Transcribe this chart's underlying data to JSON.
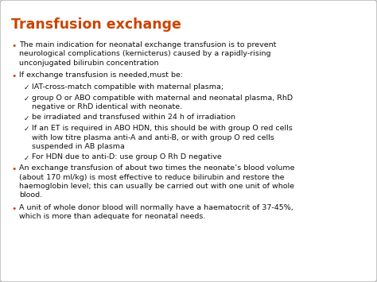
{
  "title": "Transfusion exchange",
  "title_color": "#CC4400",
  "bg_color": "#FFFFFF",
  "border_color": "#BBBBBB",
  "text_color": "#111111",
  "bullet_color": "#CC4400",
  "body_fontsize": 6.8,
  "title_fontsize": 12.5,
  "figsize": [
    4.74,
    3.55
  ],
  "dpi": 100,
  "items": [
    {
      "type": "bullet",
      "lines": [
        "The main indication for neonatal exchange transfusion is to prevent",
        "neurological complications (kernicterus) caused by a rapidly-rising",
        "unconjugated bilirubin concentration"
      ]
    },
    {
      "type": "bullet",
      "lines": [
        "If exchange transfusion is needed,must be:"
      ]
    },
    {
      "type": "check",
      "lines": [
        "IAT-cross-match compatible with maternal plasma;"
      ]
    },
    {
      "type": "check",
      "lines": [
        "group O or ABO compatible with maternal and neonatal plasma, RhD",
        "negative or RhD identical with neonate."
      ]
    },
    {
      "type": "check",
      "lines": [
        "be irradiated and transfused within 24 h of irradiation"
      ]
    },
    {
      "type": "check",
      "lines": [
        "If an ET is required in ABO HDN, this should be with group O red cells",
        "with low titre plasma anti-A and anti-B, or with group O red cells",
        "suspended in AB plasma"
      ]
    },
    {
      "type": "check",
      "lines": [
        "For HDN due to anti-D: use group O Rh D negative"
      ]
    },
    {
      "type": "bullet",
      "lines": [
        "An exchange transfusion of about two times the neonate’s blood volume",
        "(about 170 ml/kg) is most effective to reduce bilirubin and restore the",
        "haemoglobin level; this can usually be carried out with one unit of whole",
        "blood."
      ]
    },
    {
      "type": "bullet",
      "lines": [
        "A unit of whole donor blood will normally have a haematocrit of 37-45%,",
        "which is more than adequate for neonatal needs."
      ]
    }
  ]
}
